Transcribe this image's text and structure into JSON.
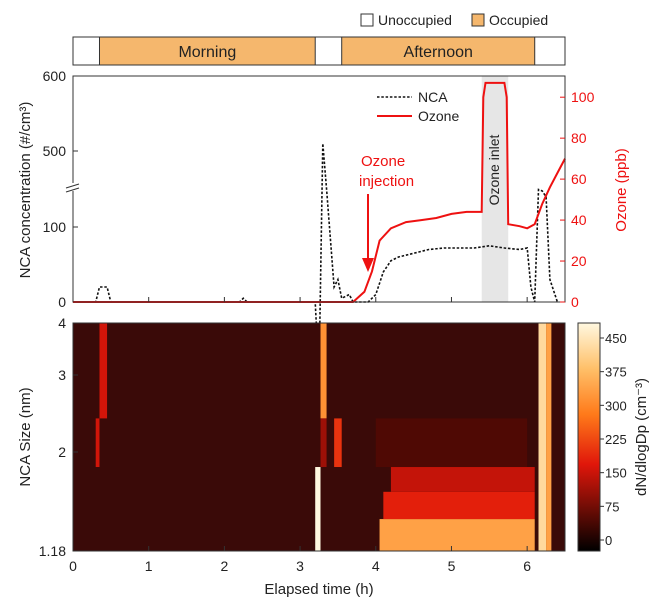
{
  "legend_top": {
    "unoccupied_label": "Unoccupied",
    "occupied_label": "Occupied",
    "unoccupied_color": "#ffffff",
    "occupied_color": "#f5b76d"
  },
  "occupancy_bar": {
    "periods": [
      {
        "label": "Morning",
        "start": 0.35,
        "end": 3.2,
        "occupied": true
      },
      {
        "label": "Afternoon",
        "start": 3.55,
        "end": 6.1,
        "occupied": true
      }
    ]
  },
  "top_panel": {
    "y_left_label": "NCA concentration (#/cm³)",
    "y_right_label": "Ozone (ppb)",
    "left_ticks": [
      "0",
      "100",
      "500",
      "600"
    ],
    "right_ticks": [
      "0",
      "20",
      "40",
      "60",
      "80",
      "100"
    ],
    "ozone_color": "#ee1111",
    "nca_color": "#111111",
    "legend": {
      "nca_label": "NCA",
      "ozone_label": "Ozone"
    },
    "annotation_injection_line1": "Ozone",
    "annotation_injection_line2": "injection",
    "annotation_inlet": "Ozone inlet",
    "inlet_shade": {
      "start": 5.4,
      "end": 5.75
    }
  },
  "bottom_panel": {
    "y_label": "NCA Size (nm)",
    "y_ticks": [
      "1.18",
      "2",
      "3",
      "4"
    ],
    "colorbar_label": "dN/dlogDp (cm⁻³)",
    "colorbar_ticks": [
      "0",
      "75",
      "150",
      "225",
      "300",
      "375",
      "450"
    ]
  },
  "x_axis": {
    "label": "Elapsed time (h)",
    "ticks": [
      "0",
      "1",
      "2",
      "3",
      "4",
      "5",
      "6"
    ]
  },
  "chart_data": [
    {
      "type": "line",
      "xlabel": "Elapsed time (h)",
      "ylabel": "NCA concentration (#/cm³)",
      "xlim": [
        0,
        6.5
      ],
      "series": [
        {
          "name": "NCA",
          "x": [
            0,
            0.3,
            0.35,
            0.45,
            0.5,
            2.2,
            2.25,
            2.3,
            3.2,
            3.25,
            3.3,
            3.35,
            3.45,
            3.5,
            3.55,
            3.65,
            3.7,
            3.8,
            3.9,
            4.0,
            4.1,
            4.2,
            4.3,
            4.5,
            4.7,
            4.9,
            5.1,
            5.3,
            5.5,
            5.7,
            5.9,
            6.0,
            6.05,
            6.1,
            6.15,
            6.2,
            6.25,
            6.3,
            6.4
          ],
          "y": [
            0,
            0,
            20,
            20,
            0,
            0,
            5,
            0,
            0,
            200,
            510,
            150,
            20,
            30,
            5,
            10,
            0,
            0,
            0,
            10,
            40,
            55,
            60,
            65,
            70,
            72,
            72,
            72,
            75,
            72,
            70,
            72,
            20,
            0,
            150,
            148,
            140,
            30,
            0
          ]
        }
      ]
    },
    {
      "type": "line",
      "ylabel": "Ozone (ppb)",
      "ylim": [
        0,
        110
      ],
      "series": [
        {
          "name": "Ozone",
          "x": [
            0,
            3.7,
            3.85,
            3.95,
            4.05,
            4.2,
            4.4,
            4.6,
            4.8,
            5.0,
            5.2,
            5.4,
            5.42,
            5.45,
            5.7,
            5.73,
            5.75,
            5.9,
            6.0,
            6.1,
            6.2,
            6.3,
            6.4,
            6.5
          ],
          "y": [
            0,
            0,
            5,
            15,
            30,
            36,
            39,
            40,
            41,
            43,
            44,
            44,
            100,
            107,
            107,
            100,
            38,
            37,
            36,
            38,
            48,
            56,
            63,
            70
          ]
        }
      ]
    },
    {
      "type": "heatmap",
      "xlabel": "Elapsed time (h)",
      "ylabel": "NCA Size (nm)",
      "ylim": [
        1.18,
        4
      ],
      "colorbar_range": [
        0,
        450
      ],
      "cells": [
        {
          "x0": 0.35,
          "x1": 0.45,
          "y0": 2.4,
          "y1": 4.0,
          "v": 160
        },
        {
          "x0": 0.3,
          "x1": 0.35,
          "y0": 1.85,
          "y1": 2.4,
          "v": 160
        },
        {
          "x0": 3.2,
          "x1": 3.27,
          "y0": 1.18,
          "y1": 1.85,
          "v": 450
        },
        {
          "x0": 3.27,
          "x1": 3.35,
          "y0": 2.4,
          "y1": 4.0,
          "v": 300
        },
        {
          "x0": 3.27,
          "x1": 3.35,
          "y0": 1.85,
          "y1": 2.4,
          "v": 120
        },
        {
          "x0": 3.45,
          "x1": 3.55,
          "y0": 1.85,
          "y1": 2.4,
          "v": 200
        },
        {
          "x0": 4.05,
          "x1": 6.1,
          "y0": 1.18,
          "y1": 1.4,
          "v": 320
        },
        {
          "x0": 4.1,
          "x1": 6.1,
          "y0": 1.4,
          "y1": 1.62,
          "v": 180
        },
        {
          "x0": 4.2,
          "x1": 6.1,
          "y0": 1.62,
          "y1": 1.85,
          "v": 150
        },
        {
          "x0": 4.0,
          "x1": 6.0,
          "y0": 1.85,
          "y1": 2.4,
          "v": 60
        },
        {
          "x0": 6.15,
          "x1": 6.25,
          "y0": 1.18,
          "y1": 4.0,
          "v": 400
        },
        {
          "x0": 6.25,
          "x1": 6.32,
          "y0": 1.18,
          "y1": 4.0,
          "v": 320
        }
      ]
    }
  ]
}
